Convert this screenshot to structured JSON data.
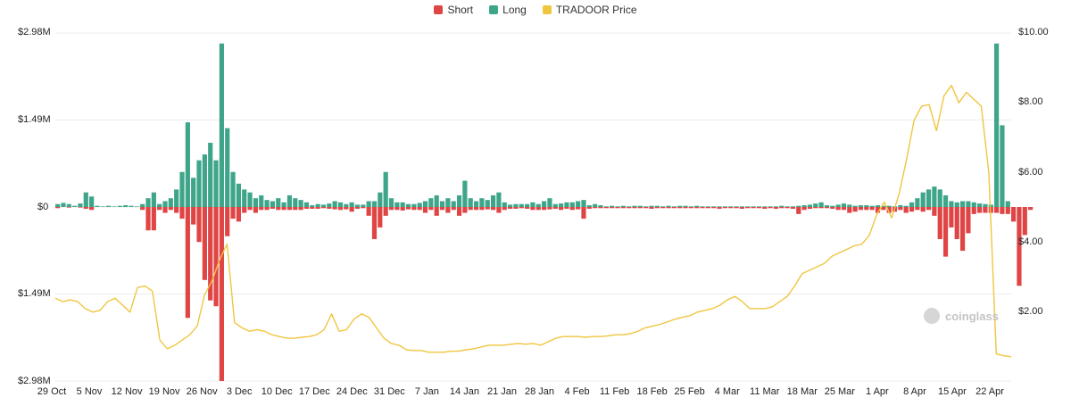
{
  "chart_data": {
    "type": "bar",
    "legend": [
      {
        "name": "Short",
        "color": "#e04545"
      },
      {
        "name": "Long",
        "color": "#3fa58a"
      },
      {
        "name": "TRADOOR Price",
        "color": "#efc640"
      }
    ],
    "left_axis": {
      "ticks": [
        "$2.98M",
        "$1.49M",
        "$0",
        "$1.49M",
        "$2.98M"
      ],
      "range": [
        -2.98,
        2.98
      ],
      "unit": "M USD"
    },
    "right_axis": {
      "ticks": [
        "$10.00",
        "$8.00",
        "$6.00",
        "$4.00",
        "$2.00"
      ],
      "range": [
        0,
        10
      ]
    },
    "x_ticks": [
      "29 Oct",
      "5 Nov",
      "12 Nov",
      "19 Nov",
      "26 Nov",
      "3 Dec",
      "10 Dec",
      "17 Dec",
      "24 Dec",
      "31 Dec",
      "7 Jan",
      "14 Jan",
      "21 Jan",
      "28 Jan",
      "4 Feb",
      "11 Feb",
      "18 Feb",
      "25 Feb",
      "4 Mar",
      "11 Mar",
      "18 Mar",
      "25 Mar",
      "1 Apr",
      "8 Apr",
      "15 Apr",
      "22 Apr"
    ],
    "grid": true,
    "legend_position": "top-center",
    "series": [
      {
        "name": "Long",
        "color": "#3fa58a",
        "values": [
          0.05,
          0.07,
          0.05,
          0.02,
          0.06,
          0.25,
          0.18,
          0.02,
          0.01,
          0.02,
          0.01,
          0.02,
          0.03,
          0.02,
          0.01,
          0.05,
          0.15,
          0.25,
          0.05,
          0.1,
          0.15,
          0.3,
          0.6,
          1.45,
          0.5,
          0.8,
          0.9,
          1.1,
          0.8,
          2.8,
          1.35,
          0.6,
          0.4,
          0.3,
          0.25,
          0.15,
          0.2,
          0.12,
          0.1,
          0.15,
          0.08,
          0.2,
          0.15,
          0.12,
          0.08,
          0.03,
          0.05,
          0.04,
          0.06,
          0.1,
          0.08,
          0.05,
          0.08,
          0.04,
          0.04,
          0.1,
          0.1,
          0.25,
          0.6,
          0.15,
          0.08,
          0.08,
          0.05,
          0.05,
          0.07,
          0.1,
          0.15,
          0.2,
          0.1,
          0.15,
          0.1,
          0.2,
          0.45,
          0.15,
          0.1,
          0.15,
          0.12,
          0.2,
          0.25,
          0.08,
          0.04,
          0.05,
          0.05,
          0.05,
          0.08,
          0.05,
          0.1,
          0.15,
          0.05,
          0.06,
          0.08,
          0.08,
          0.1,
          0.12,
          0.03,
          0.05,
          0.03,
          0.01,
          0.02,
          0.01,
          0.02,
          0.01,
          0.02,
          0.02,
          0.01,
          0.02,
          0.02,
          0.01,
          0.02,
          0.01,
          0.02,
          0.02,
          0.01,
          0.02,
          0.01,
          0.01,
          0.01,
          0.01,
          0.01,
          0.01,
          0.01,
          0.01,
          0.01,
          0.01,
          0.01,
          0.01,
          0.01,
          0.01,
          0.02,
          0.01,
          0.01,
          0.02,
          0.03,
          0.04,
          0.06,
          0.08,
          0.03,
          0.02,
          0.04,
          0.06,
          0.04,
          0.02,
          0.03,
          0.03,
          0.02,
          0.03,
          0.02,
          0.02,
          0.01,
          0.03,
          0.02,
          0.08,
          0.15,
          0.25,
          0.3,
          0.35,
          0.3,
          0.2,
          0.1,
          0.08,
          0.1,
          0.1,
          0.08,
          0.06,
          0.05,
          0.04,
          2.8,
          1.4,
          0.1
        ]
      },
      {
        "name": "Short",
        "color": "#e04545",
        "values": [
          -0.02,
          0,
          -0.01,
          0,
          -0.01,
          -0.03,
          -0.05,
          0,
          0,
          0,
          0,
          0,
          0,
          0,
          0,
          -0.05,
          -0.4,
          -0.4,
          -0.05,
          -0.1,
          -0.05,
          -0.1,
          -0.2,
          -1.9,
          -0.3,
          -0.6,
          -1.25,
          -1.6,
          -1.7,
          -2.98,
          -0.5,
          -0.2,
          -0.25,
          -0.1,
          -0.05,
          -0.1,
          -0.05,
          -0.05,
          -0.03,
          -0.05,
          -0.05,
          -0.05,
          -0.05,
          -0.05,
          -0.03,
          -0.03,
          -0.03,
          -0.02,
          -0.03,
          -0.04,
          -0.05,
          -0.04,
          -0.08,
          -0.03,
          -0.02,
          -0.15,
          -0.55,
          -0.35,
          -0.15,
          -0.05,
          -0.05,
          -0.06,
          -0.04,
          -0.05,
          -0.05,
          -0.1,
          -0.05,
          -0.15,
          -0.05,
          -0.1,
          -0.05,
          -0.15,
          -0.1,
          -0.05,
          -0.05,
          -0.05,
          -0.04,
          -0.05,
          -0.1,
          -0.05,
          -0.03,
          -0.03,
          -0.02,
          -0.03,
          -0.05,
          -0.05,
          -0.05,
          -0.04,
          -0.03,
          -0.05,
          -0.03,
          -0.05,
          -0.04,
          -0.2,
          -0.03,
          -0.02,
          -0.02,
          -0.02,
          -0.02,
          -0.02,
          -0.02,
          -0.02,
          -0.02,
          -0.02,
          -0.02,
          -0.03,
          -0.02,
          -0.02,
          -0.02,
          -0.02,
          -0.02,
          -0.02,
          -0.02,
          -0.02,
          -0.02,
          -0.02,
          -0.02,
          -0.03,
          -0.02,
          -0.02,
          -0.02,
          -0.03,
          -0.02,
          -0.02,
          -0.02,
          -0.03,
          -0.02,
          -0.03,
          -0.02,
          -0.02,
          -0.03,
          -0.12,
          -0.05,
          -0.03,
          -0.02,
          -0.02,
          -0.02,
          -0.03,
          -0.05,
          -0.05,
          -0.1,
          -0.08,
          -0.05,
          -0.05,
          -0.05,
          -0.1,
          -0.05,
          -0.1,
          -0.08,
          -0.05,
          -0.1,
          -0.08,
          -0.05,
          -0.08,
          -0.05,
          -0.15,
          -0.55,
          -0.85,
          -0.35,
          -0.55,
          -0.75,
          -0.45,
          -0.12,
          -0.1,
          -0.1,
          -0.1,
          -0.1,
          -0.12,
          -0.12,
          -0.25,
          -1.35,
          -0.48,
          -0.05
        ]
      },
      {
        "name": "TRADOOR Price",
        "color": "#efc640",
        "values": [
          2.4,
          2.3,
          2.35,
          2.3,
          2.1,
          2.0,
          2.05,
          2.3,
          2.4,
          2.2,
          2.0,
          2.7,
          2.75,
          2.6,
          1.2,
          0.95,
          1.05,
          1.2,
          1.35,
          1.6,
          2.5,
          2.9,
          3.5,
          3.95,
          1.7,
          1.55,
          1.45,
          1.5,
          1.45,
          1.35,
          1.3,
          1.25,
          1.25,
          1.28,
          1.3,
          1.35,
          1.5,
          1.95,
          1.45,
          1.5,
          1.8,
          1.95,
          1.85,
          1.55,
          1.25,
          1.1,
          1.05,
          0.92,
          0.9,
          0.9,
          0.85,
          0.85,
          0.85,
          0.88,
          0.88,
          0.92,
          0.95,
          1.0,
          1.05,
          1.05,
          1.05,
          1.08,
          1.1,
          1.08,
          1.1,
          1.05,
          1.15,
          1.25,
          1.3,
          1.3,
          1.3,
          1.28,
          1.3,
          1.3,
          1.32,
          1.35,
          1.35,
          1.38,
          1.45,
          1.55,
          1.6,
          1.65,
          1.72,
          1.8,
          1.85,
          1.9,
          2.0,
          2.05,
          2.1,
          2.2,
          2.35,
          2.45,
          2.3,
          2.1,
          2.1,
          2.1,
          2.15,
          2.3,
          2.45,
          2.75,
          3.1,
          3.2,
          3.3,
          3.4,
          3.6,
          3.7,
          3.8,
          3.9,
          3.95,
          4.2,
          4.8,
          5.15,
          4.7,
          5.4,
          6.4,
          7.5,
          7.9,
          7.95,
          7.2,
          8.2,
          8.5,
          8.0,
          8.3,
          8.1,
          7.9,
          6.0,
          0.8,
          0.75,
          0.72
        ]
      }
    ]
  },
  "watermark": {
    "text": "coinglass",
    "icon": "coinglass-logo-icon"
  }
}
